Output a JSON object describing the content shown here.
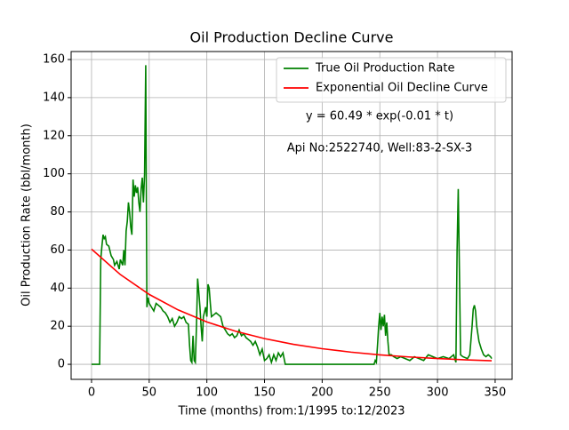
{
  "chart_data": {
    "type": "line",
    "title": "Oil Production Decline Curve",
    "xlabel": "Time (months) from:1/1995 to:12/2023",
    "ylabel": "Oil Production Rate (bbl/month)",
    "xlim": [
      -17.7,
      364.7
    ],
    "ylim": [
      -7.9,
      164.2
    ],
    "xticks": [
      0,
      50,
      100,
      150,
      200,
      250,
      300,
      350
    ],
    "yticks": [
      0,
      20,
      40,
      60,
      80,
      100,
      120,
      140,
      160
    ],
    "grid": true,
    "legend": "upper right",
    "annotations": [
      "y = 60.49 * exp(-0.01 * t)",
      "Api No:2522740, Well:83-2-SX-3"
    ],
    "series": [
      {
        "name": "True Oil Production Rate",
        "color": "#008000",
        "x": [
          0,
          5,
          7,
          8,
          9,
          10,
          11,
          12,
          13,
          15,
          17,
          19,
          20,
          22,
          24,
          25,
          27,
          28,
          29,
          30,
          31,
          32,
          33,
          34,
          35,
          36,
          37,
          38,
          39,
          40,
          41,
          42,
          43,
          44,
          45,
          46,
          47,
          48,
          49,
          50,
          52,
          54,
          56,
          58,
          60,
          62,
          64,
          66,
          68,
          70,
          72,
          74,
          76,
          78,
          80,
          82,
          84,
          85,
          86,
          87,
          88,
          89,
          90,
          91,
          92,
          93,
          94,
          95,
          96,
          97,
          99,
          100,
          101,
          102,
          103,
          104,
          106,
          108,
          110,
          112,
          114,
          116,
          118,
          120,
          122,
          124,
          126,
          128,
          130,
          132,
          134,
          136,
          138,
          140,
          142,
          144,
          146,
          148,
          150,
          152,
          154,
          156,
          158,
          160,
          162,
          164,
          166,
          168,
          170,
          200,
          245,
          246,
          247,
          248,
          249,
          250,
          251,
          252,
          253,
          254,
          255,
          256,
          257,
          258,
          260,
          262,
          265,
          268,
          272,
          276,
          280,
          284,
          288,
          292,
          296,
          300,
          305,
          310,
          314,
          316,
          317,
          318,
          319,
          320,
          322,
          326,
          328,
          330,
          331,
          332,
          333,
          334,
          336,
          338,
          340,
          342,
          344,
          346,
          347
        ],
        "values": [
          0,
          0,
          0,
          55,
          62,
          68,
          66,
          67,
          63,
          62,
          57,
          55,
          52,
          54,
          50,
          55,
          52,
          60,
          52,
          70,
          75,
          85,
          80,
          72,
          68,
          97,
          88,
          94,
          90,
          93,
          85,
          80,
          92,
          98,
          85,
          100,
          157,
          30,
          35,
          32,
          30,
          28,
          32,
          31,
          30,
          28,
          27,
          25,
          22,
          24,
          20,
          22,
          25,
          24,
          25,
          22,
          21,
          10,
          2,
          1,
          15,
          2,
          1,
          20,
          45,
          38,
          30,
          20,
          12,
          25,
          30,
          25,
          42,
          40,
          32,
          25,
          26,
          27,
          26,
          25,
          20,
          18,
          16,
          15,
          16,
          14,
          15,
          18,
          15,
          16,
          14,
          13,
          12,
          10,
          12,
          9,
          5,
          8,
          2,
          3,
          5,
          1,
          5,
          2,
          6,
          4,
          6,
          0,
          0,
          0,
          0,
          2,
          1,
          10,
          20,
          27,
          18,
          25,
          20,
          26,
          15,
          22,
          12,
          5,
          5,
          4,
          3,
          4,
          3,
          2,
          4,
          3,
          2,
          5,
          4,
          3,
          4,
          3,
          5,
          1,
          60,
          92,
          50,
          5,
          4,
          3,
          5,
          20,
          29,
          31,
          28,
          20,
          12,
          8,
          5,
          4,
          5,
          4,
          3
        ]
      },
      {
        "name": "Exponential Oil Decline Curve",
        "color": "#ff0000",
        "x": [
          0,
          25,
          50,
          75,
          100,
          125,
          150,
          175,
          200,
          225,
          250,
          275,
          300,
          325,
          347
        ],
        "values": [
          60.49,
          47.11,
          36.69,
          28.57,
          22.25,
          17.33,
          13.5,
          10.51,
          8.19,
          6.38,
          4.97,
          3.87,
          3.01,
          2.35,
          1.88
        ]
      }
    ]
  }
}
